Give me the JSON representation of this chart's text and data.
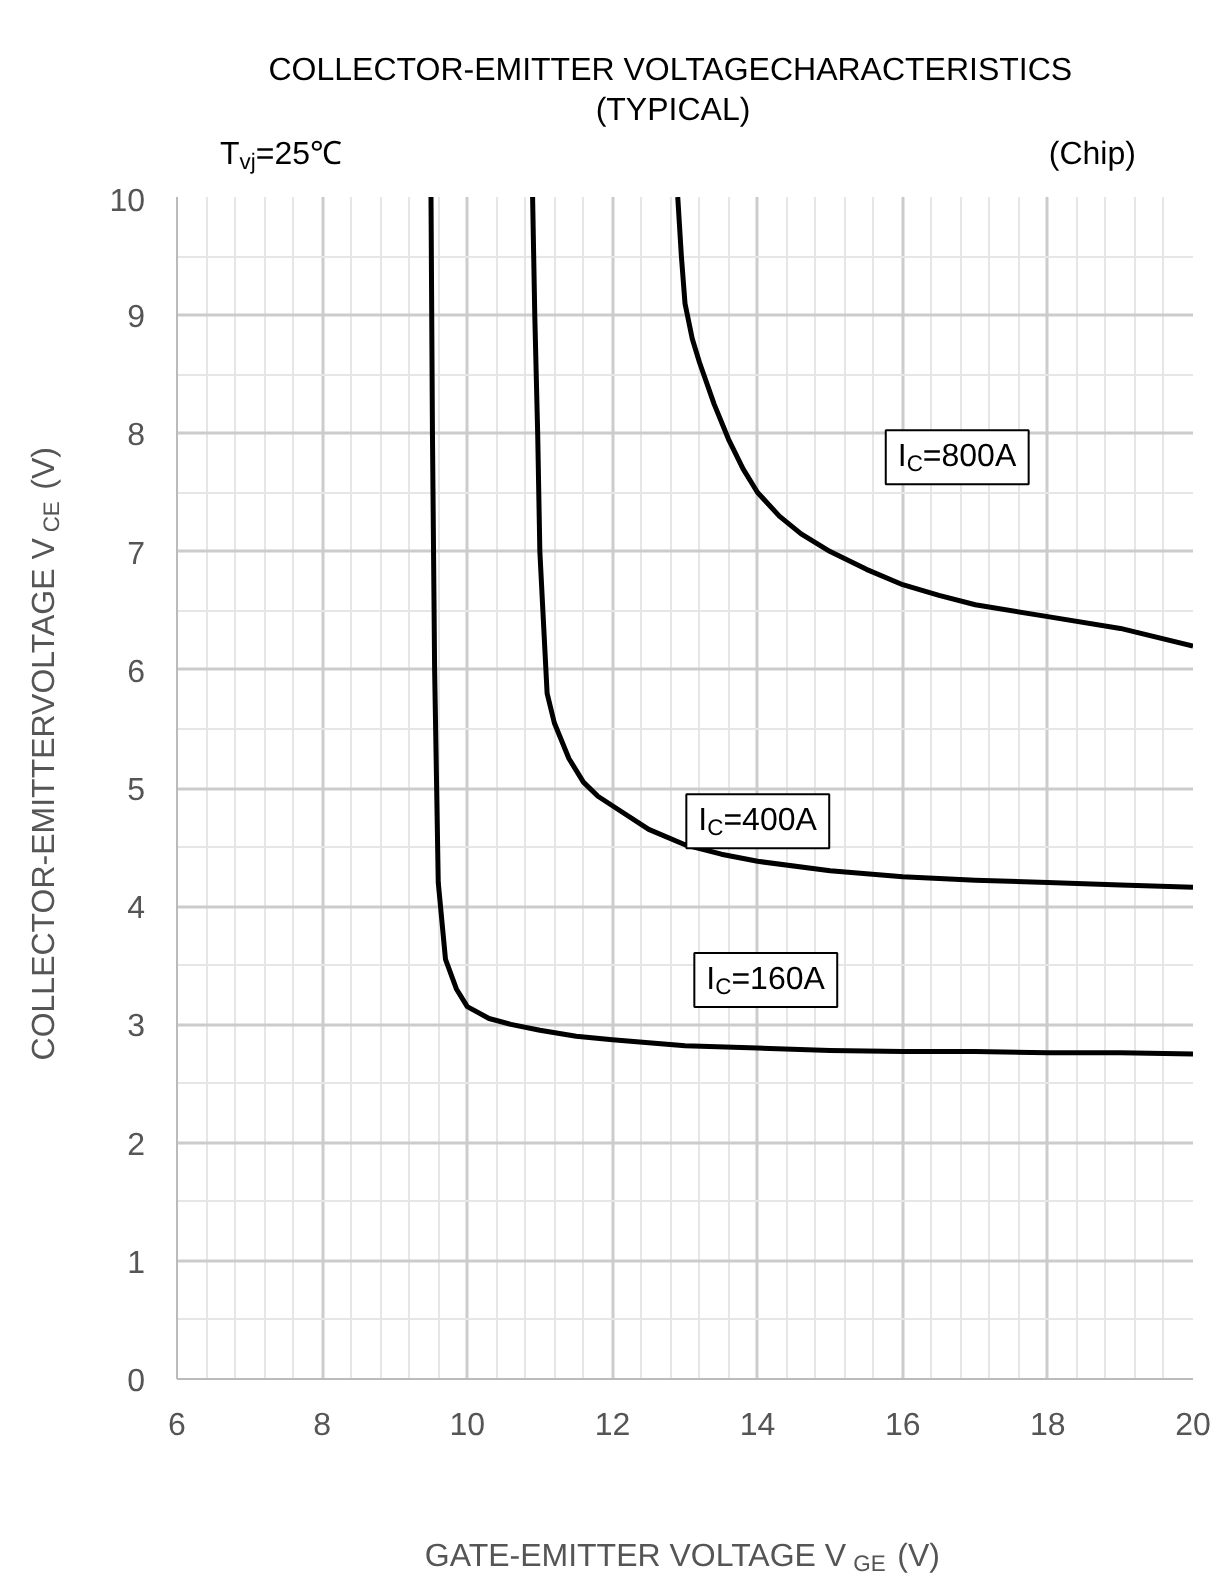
{
  "chart_data": {
    "type": "line",
    "title": "COLLECTOR-EMITTER VOLTAGECHARACTERISTICS\n(TYPICAL)",
    "xlabel": "GATE-EMITTER VOLTAGE V$_{GE}$ (V)",
    "ylabel": "COLLECTOR-EMITTERVOLTAGE V$_{CE}$ (V)",
    "annotations": [
      "T$_{vj}$=25℃",
      "(Chip)"
    ],
    "series": [
      {
        "name": "I$_{C}$=160A",
        "color": "#000000",
        "x": [
          9.5,
          9.52,
          9.55,
          9.6,
          9.7,
          9.85,
          10,
          10.3,
          10.6,
          11,
          11.5,
          12,
          13,
          14,
          15,
          16,
          17,
          18,
          19,
          20
        ],
        "values": [
          10,
          8,
          6,
          4.2,
          3.55,
          3.3,
          3.15,
          3.05,
          3.0,
          2.95,
          2.9,
          2.87,
          2.82,
          2.8,
          2.78,
          2.77,
          2.77,
          2.76,
          2.76,
          2.75
        ]
      },
      {
        "name": "I$_{C}$=400A",
        "color": "#000000",
        "x": [
          10.9,
          10.93,
          10.97,
          11.0,
          11.05,
          11.1,
          11.2,
          11.4,
          11.6,
          11.8,
          12,
          12.5,
          13,
          13.5,
          14,
          15,
          16,
          17,
          18,
          19,
          20
        ],
        "values": [
          10,
          9,
          8,
          7,
          6.4,
          5.8,
          5.55,
          5.25,
          5.05,
          4.93,
          4.85,
          4.65,
          4.52,
          4.44,
          4.38,
          4.3,
          4.25,
          4.22,
          4.2,
          4.18,
          4.16
        ]
      },
      {
        "name": "I$_{C}$=800A",
        "color": "#000000",
        "x": [
          12.9,
          12.95,
          13.0,
          13.1,
          13.2,
          13.4,
          13.6,
          13.8,
          14,
          14.3,
          14.6,
          15,
          15.5,
          16,
          16.5,
          17,
          18,
          19,
          20
        ],
        "values": [
          10,
          9.5,
          9.1,
          8.8,
          8.6,
          8.25,
          7.95,
          7.7,
          7.5,
          7.3,
          7.15,
          7.0,
          6.85,
          6.72,
          6.63,
          6.55,
          6.45,
          6.35,
          6.2
        ]
      }
    ],
    "xlim": [
      6,
      20
    ],
    "ylim": [
      0,
      10
    ],
    "xticks": [
      6,
      8,
      10,
      12,
      14,
      16,
      18,
      20
    ],
    "yticks": [
      0,
      1,
      2,
      3,
      4,
      5,
      6,
      7,
      8,
      9,
      10
    ],
    "grid": true,
    "marker": "none",
    "line_style": "solid"
  }
}
